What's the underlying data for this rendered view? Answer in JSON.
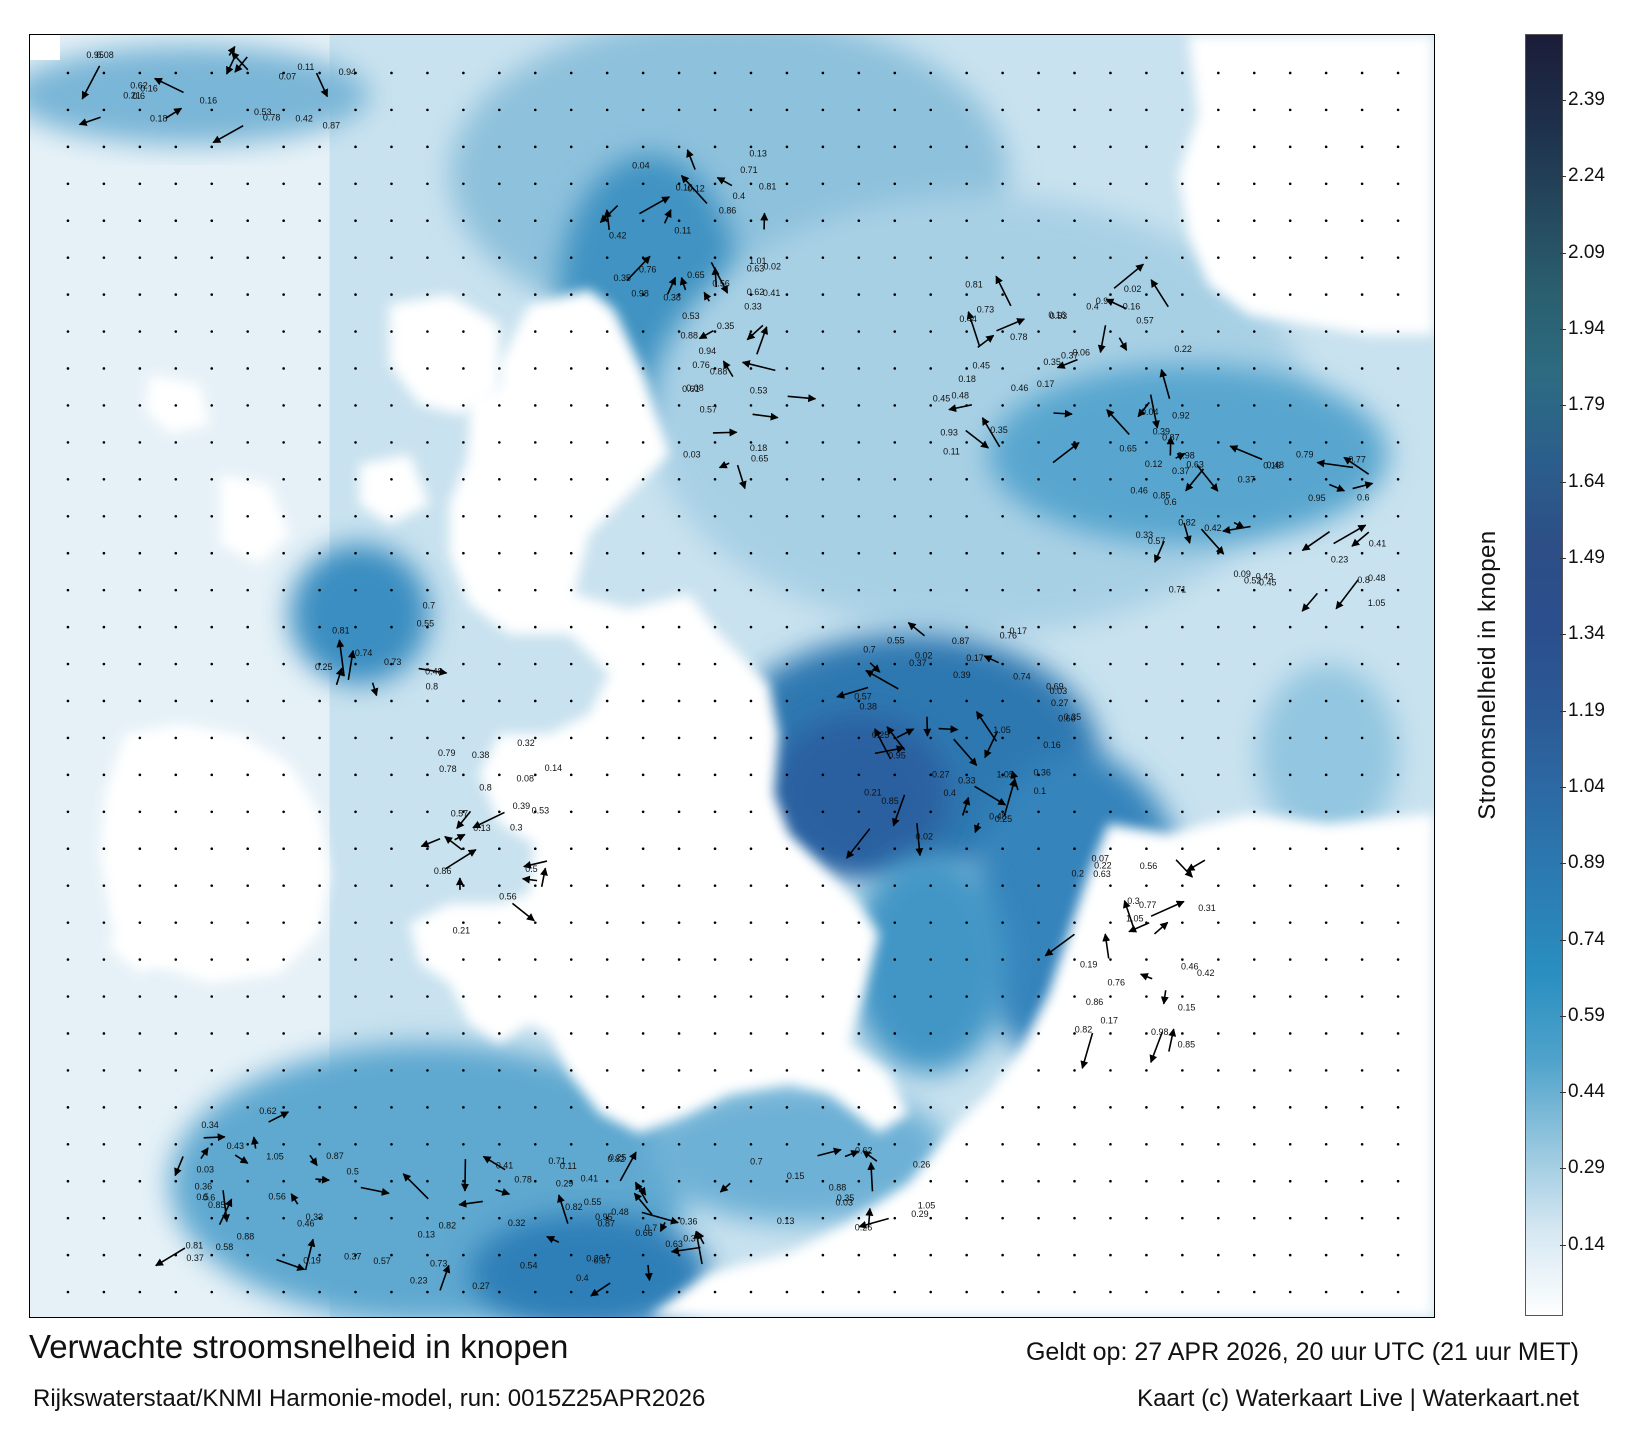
{
  "title": "Verwachte stroomsnelheid in knopen",
  "valid_time": "Geldt op: 27 APR 2026, 20 uur UTC (21 uur MET)",
  "model_run": "Rijkswaterstaat/KNMI Harmonie-model, run: 0015Z25APR2026",
  "credit": "Kaart (c) Waterkaart Live | Waterkaart.net",
  "colorbar": {
    "label": "Stroomsnelheid in knopen",
    "ticks": [
      "2.39",
      "2.24",
      "2.09",
      "1.94",
      "1.79",
      "1.64",
      "1.49",
      "1.34",
      "1.19",
      "1.04",
      "0.89",
      "0.74",
      "0.59",
      "0.44",
      "0.29",
      "0.14"
    ],
    "tick_values": [
      2.39,
      2.24,
      2.09,
      1.94,
      1.79,
      1.64,
      1.49,
      1.34,
      1.19,
      1.04,
      0.89,
      0.74,
      0.59,
      0.44,
      0.29,
      0.14
    ],
    "range": [
      0,
      2.52
    ],
    "colors": [
      "#ffffff",
      "#d6e8f2",
      "#95c6de",
      "#4fa3cb",
      "#2a8fc0",
      "#2b7db3",
      "#2c6ca6",
      "#2b5b97",
      "#2b4f8d",
      "#2d4e86",
      "#2b5e8c",
      "#2d6b82",
      "#2a5f6e",
      "#24475c",
      "#1e2f4a",
      "#1b1d39"
    ]
  },
  "map": {
    "land_color": "#ffffff",
    "sea_colors": [
      "#e4f0f7",
      "#b9d9ea",
      "#7fb9d8",
      "#3f96c4",
      "#2a7fb6",
      "#2b65a3"
    ],
    "arrow_color": "#000000",
    "speed_labels": [
      "0.13",
      "0.17",
      "0.16",
      "0.11",
      "0.15",
      "0.16",
      "0.03",
      "0.04",
      "0.05",
      "0.06",
      "0.12",
      "0.09",
      "0.1",
      "0.14",
      "0.18",
      "0.21",
      "0.2",
      "0.27",
      "0.25",
      "0.24",
      "0.36",
      "0.34",
      "0.33",
      "0.26",
      "0.22",
      "0.19",
      "0.35",
      "0.31",
      "0.29",
      "0.23",
      "0.47",
      "0.45",
      "0.43",
      "0.41",
      "0.44",
      "0.42",
      "0.48",
      "0.46",
      "0.39",
      "0.37",
      "0.58",
      "0.55",
      "0.54",
      "0.53",
      "0.59",
      "0.61",
      "0.62",
      "0.63",
      "0.65",
      "0.66",
      "0.69",
      "0.7",
      "0.74",
      "0.76",
      "0.77",
      "0.79",
      "0.8",
      "0.81",
      "0.82",
      "0.86",
      "0.87",
      "0.88",
      "0.9",
      "0.92",
      "0.94",
      "0.95",
      "0.98",
      "1.05",
      "1.01",
      "0.07",
      "0.08",
      "0.02",
      "0.01",
      "0.28",
      "0.32",
      "0.38",
      "0.4",
      "0.5",
      "0.52",
      "0.56",
      "0.57",
      "0.6",
      "0.67",
      "0.71",
      "0.73",
      "0.78",
      "0.85",
      "0.89",
      "0.93",
      "0.3"
    ]
  }
}
